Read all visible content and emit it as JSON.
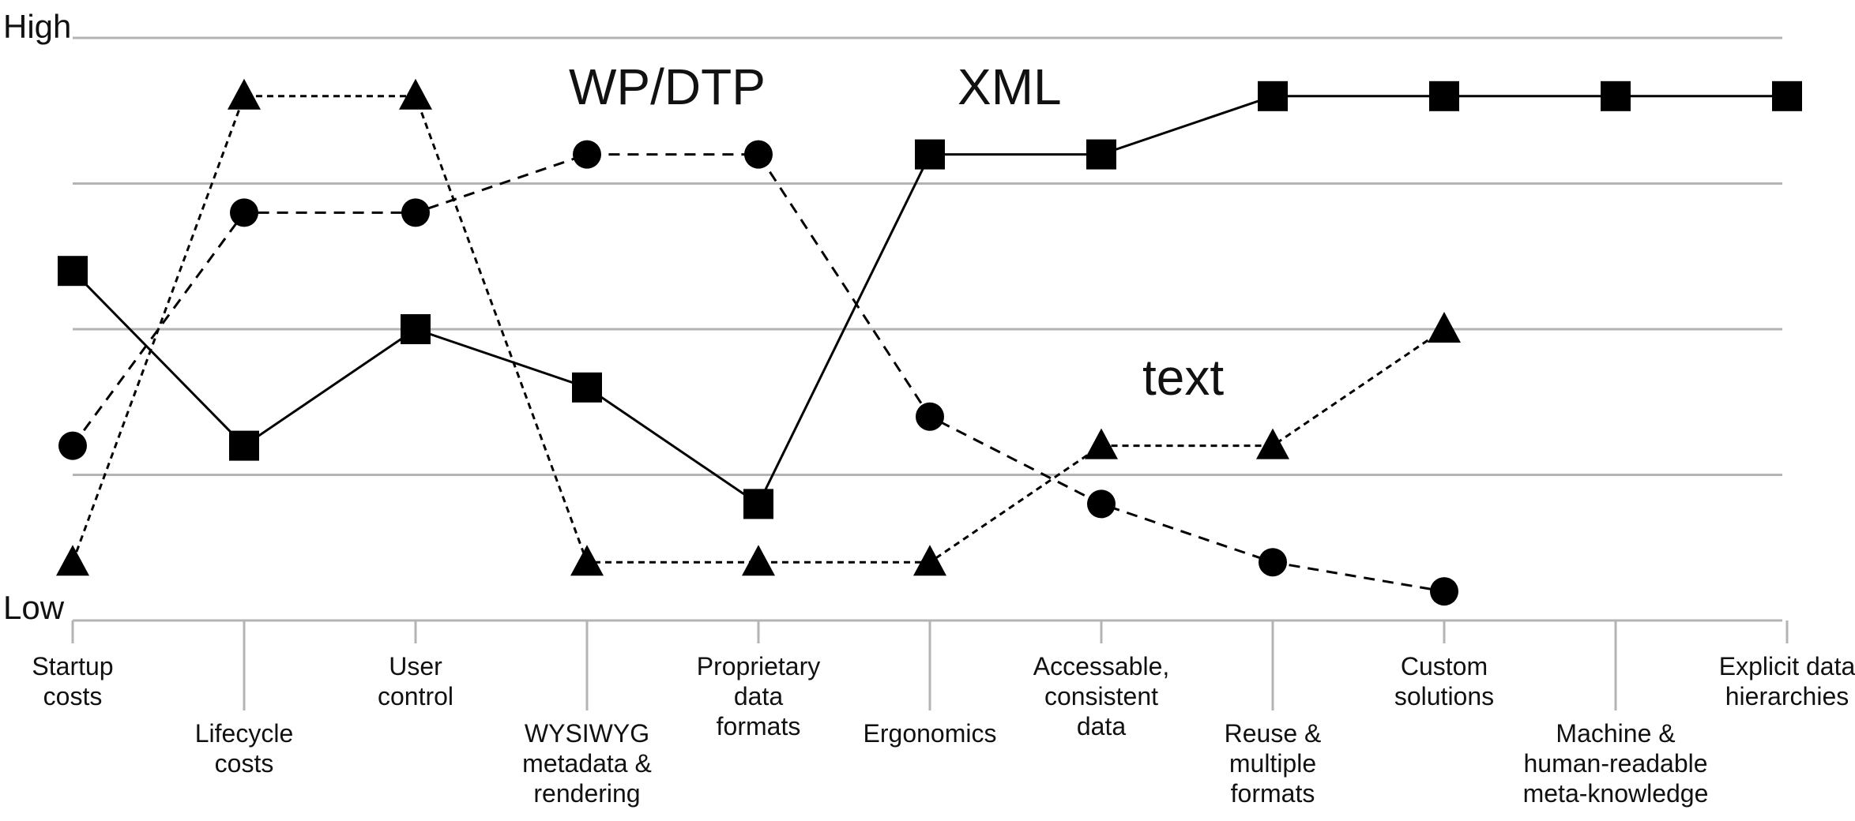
{
  "chart_data": {
    "type": "line",
    "y_axis": {
      "high_label": "High",
      "low_label": "Low",
      "gridlines": 5,
      "ylim": [
        0,
        4
      ]
    },
    "categories": [
      [
        "Startup",
        "costs"
      ],
      [
        "Lifecycle",
        "costs"
      ],
      [
        "User",
        "control"
      ],
      [
        "WYSIWYG",
        "metadata &",
        "rendering"
      ],
      [
        "Proprietary",
        "data",
        "formats"
      ],
      [
        "Ergonomics"
      ],
      [
        "Accessable,",
        "consistent",
        "data"
      ],
      [
        "Reuse &",
        "multiple",
        "formats"
      ],
      [
        "Custom",
        "solutions"
      ],
      [
        "Machine &",
        "human-readable",
        "meta-knowledge"
      ],
      [
        "Explicit data",
        "hierarchies"
      ]
    ],
    "series": [
      {
        "name": "XML",
        "marker": "square",
        "line": "solid",
        "values": [
          2.4,
          1.2,
          2.0,
          1.6,
          0.8,
          3.2,
          3.2,
          3.6,
          3.6,
          3.6,
          3.6
        ]
      },
      {
        "name": "WP/DTP",
        "marker": "circle",
        "line": "dashed",
        "values": [
          1.2,
          2.8,
          2.8,
          3.2,
          3.2,
          1.4,
          0.8,
          0.4,
          0.2,
          null,
          null
        ]
      },
      {
        "name": "text",
        "marker": "triangle",
        "line": "dotted",
        "values": [
          0.4,
          3.6,
          3.6,
          0.4,
          0.4,
          0.4,
          1.2,
          1.2,
          2.0,
          null,
          null
        ]
      }
    ]
  }
}
